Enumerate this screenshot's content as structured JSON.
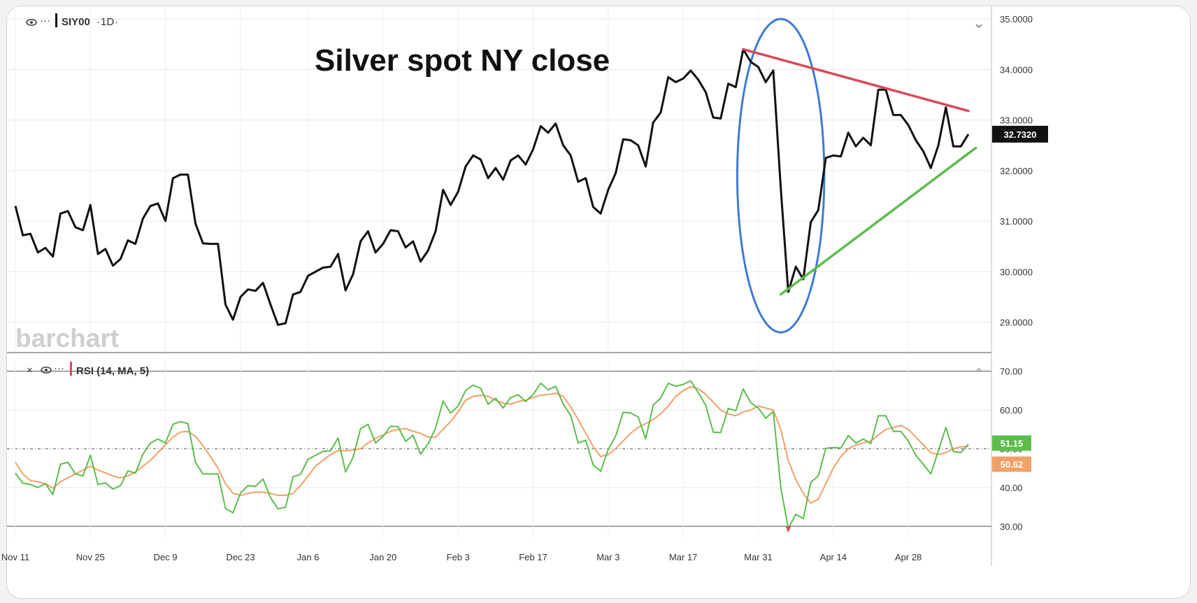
{
  "chart_data": [
    {
      "type": "line",
      "title": "Silver spot NY close",
      "symbol": "SIY00",
      "interval": "1D",
      "watermark": "barchart",
      "last_price_label": "32.7320",
      "x_tick_labels": [
        "Nov 11",
        "Nov 25",
        "Dec 9",
        "Dec 23",
        "Jan 6",
        "Jan 20",
        "Feb 3",
        "Feb 17",
        "Mar 3",
        "Mar 17",
        "Mar 31",
        "Apr 14",
        "Apr 28"
      ],
      "x_tick_index": [
        0,
        10,
        20,
        30,
        39,
        49,
        59,
        69,
        79,
        89,
        99,
        109,
        119
      ],
      "y_tick_labels": [
        "35.0000",
        "34.0000",
        "33.0000",
        "32.0000",
        "31.0000",
        "30.0000",
        "29.0000"
      ],
      "ylim": [
        28.4,
        35.25
      ],
      "series": [
        {
          "color": "#111111",
          "values": [
            31.3,
            30.72,
            30.75,
            30.38,
            30.47,
            30.3,
            31.15,
            31.2,
            30.88,
            30.82,
            31.32,
            30.35,
            30.45,
            30.12,
            30.25,
            30.62,
            30.55,
            31.05,
            31.3,
            31.35,
            31.0,
            31.85,
            31.92,
            31.92,
            30.95,
            30.56,
            30.55,
            30.55,
            29.35,
            29.05,
            29.5,
            29.65,
            29.62,
            29.78,
            29.35,
            28.95,
            28.98,
            29.55,
            29.6,
            29.92,
            30.0,
            30.08,
            30.1,
            30.35,
            29.63,
            29.95,
            30.6,
            30.8,
            30.38,
            30.55,
            30.82,
            30.8,
            30.48,
            30.6,
            30.2,
            30.42,
            30.8,
            31.62,
            31.32,
            31.58,
            32.08,
            32.3,
            32.22,
            31.85,
            32.05,
            31.82,
            32.2,
            32.3,
            32.12,
            32.42,
            32.88,
            32.75,
            32.93,
            32.5,
            32.3,
            31.78,
            31.85,
            31.28,
            31.15,
            31.62,
            31.95,
            32.62,
            32.6,
            32.5,
            32.08,
            32.95,
            33.15,
            33.85,
            33.75,
            33.82,
            33.98,
            33.8,
            33.55,
            33.05,
            33.03,
            33.72,
            33.65,
            34.4,
            34.15,
            34.05,
            33.75,
            33.98,
            31.65,
            29.6,
            30.1,
            29.85,
            30.98,
            31.22,
            32.25,
            32.3,
            32.28,
            32.75,
            32.48,
            32.65,
            32.5,
            33.6,
            33.6,
            33.1,
            33.1,
            32.9,
            32.6,
            32.38,
            32.05,
            32.5,
            33.25,
            32.48,
            32.48,
            32.72
          ]
        }
      ],
      "annotations": [
        {
          "type": "trendline",
          "color": "#d84a5c",
          "from": [
            97,
            34.4
          ],
          "to": [
            127,
            33.18
          ]
        },
        {
          "type": "trendline",
          "color": "#5cbd4d",
          "from": [
            102,
            29.55
          ],
          "to": [
            128,
            32.45
          ]
        },
        {
          "type": "ellipse",
          "color": "#3f7bd2",
          "center": [
            102,
            31.9
          ],
          "radii": [
            5.8,
            3.1
          ]
        }
      ]
    },
    {
      "type": "line",
      "title": "RSI (14, MA, 5)",
      "ylim": [
        27,
        73
      ],
      "y_tick_labels": [
        "70.00",
        "60.00",
        "50.00",
        "40.00",
        "30.00"
      ],
      "reference_lines": [
        70,
        50,
        30
      ],
      "rsi_label": "51.15",
      "ma_label": "50.62",
      "series": [
        {
          "color": "#5cbd4d",
          "values": [
            43.7,
            41.1,
            40.8,
            40.0,
            41.0,
            38.2,
            46.0,
            46.5,
            43.5,
            43.0,
            48.3,
            40.8,
            41.2,
            39.6,
            40.5,
            44.3,
            43.7,
            48.6,
            51.5,
            52.5,
            51.5,
            56.3,
            57.0,
            56.5,
            46.5,
            43.5,
            43.5,
            43.5,
            34.6,
            33.5,
            38.6,
            40.5,
            40.3,
            42.2,
            37.4,
            34.5,
            34.9,
            42.8,
            43.4,
            47.3,
            48.3,
            49.3,
            49.5,
            52.8,
            44.0,
            47.8,
            55.2,
            56.3,
            51.5,
            53.2,
            55.8,
            55.7,
            51.9,
            53.5,
            48.6,
            51.3,
            55.3,
            62.3,
            59.2,
            61.0,
            65.0,
            66.4,
            65.6,
            61.5,
            63.0,
            60.5,
            63.2,
            63.9,
            62.2,
            64.0,
            66.9,
            65.2,
            66.1,
            61.5,
            58.6,
            51.5,
            52.2,
            45.8,
            44.2,
            49.8,
            53.3,
            59.4,
            59.2,
            58.2,
            52.5,
            61.2,
            63.1,
            66.9,
            66.1,
            66.6,
            67.5,
            64.5,
            61.2,
            54.3,
            54.2,
            60.4,
            59.8,
            65.4,
            61.9,
            60.5,
            57.9,
            59.6,
            40.0,
            29.5,
            33.1,
            32.0,
            41.3,
            43.0,
            50.1,
            50.3,
            50.2,
            53.4,
            51.5,
            52.5,
            51.3,
            58.5,
            58.5,
            54.5,
            54.5,
            52.0,
            48.3,
            46.0,
            43.5,
            49.5,
            55.5,
            49.3,
            49.0,
            51.15
          ]
        },
        {
          "color": "#f0a167",
          "values": [
            46.5,
            43.5,
            41.8,
            41.5,
            41.0,
            39.8,
            41.5,
            42.5,
            43.5,
            44.5,
            45.5,
            44.5,
            43.8,
            43.0,
            42.5,
            43.0,
            44.0,
            45.5,
            47.0,
            49.0,
            51.0,
            53.0,
            54.3,
            54.5,
            53.2,
            50.8,
            48.0,
            45.0,
            41.0,
            38.5,
            38.0,
            38.5,
            38.8,
            38.8,
            38.5,
            38.0,
            38.0,
            38.5,
            40.5,
            43.0,
            45.5,
            47.0,
            48.5,
            49.5,
            49.5,
            49.7,
            50.0,
            51.5,
            52.7,
            53.5,
            54.5,
            55.0,
            55.2,
            54.5,
            54.0,
            53.0,
            53.0,
            55.0,
            57.0,
            59.5,
            62.5,
            63.5,
            63.8,
            63.5,
            62.5,
            61.8,
            61.5,
            62.2,
            62.5,
            63.2,
            63.8,
            64.0,
            64.3,
            63.5,
            60.8,
            57.5,
            54.0,
            50.5,
            48.0,
            48.5,
            50.0,
            52.0,
            54.0,
            55.5,
            56.5,
            57.5,
            59.0,
            61.0,
            63.5,
            65.0,
            66.0,
            65.5,
            64.0,
            62.0,
            60.0,
            59.0,
            58.5,
            59.5,
            60.0,
            61.0,
            60.5,
            60.0,
            55.0,
            47.0,
            42.0,
            38.5,
            36.0,
            37.0,
            41.0,
            45.0,
            48.0,
            50.0,
            51.0,
            51.5,
            52.0,
            53.5,
            55.0,
            55.5,
            56.0,
            55.0,
            53.0,
            51.0,
            49.0,
            48.5,
            49.0,
            50.0,
            50.5,
            50.62
          ]
        }
      ]
    }
  ],
  "icons": {
    "visibility": "eye-icon",
    "more": "ellipsis-icon",
    "close": "close-icon",
    "collapse": "chevron-icon"
  }
}
